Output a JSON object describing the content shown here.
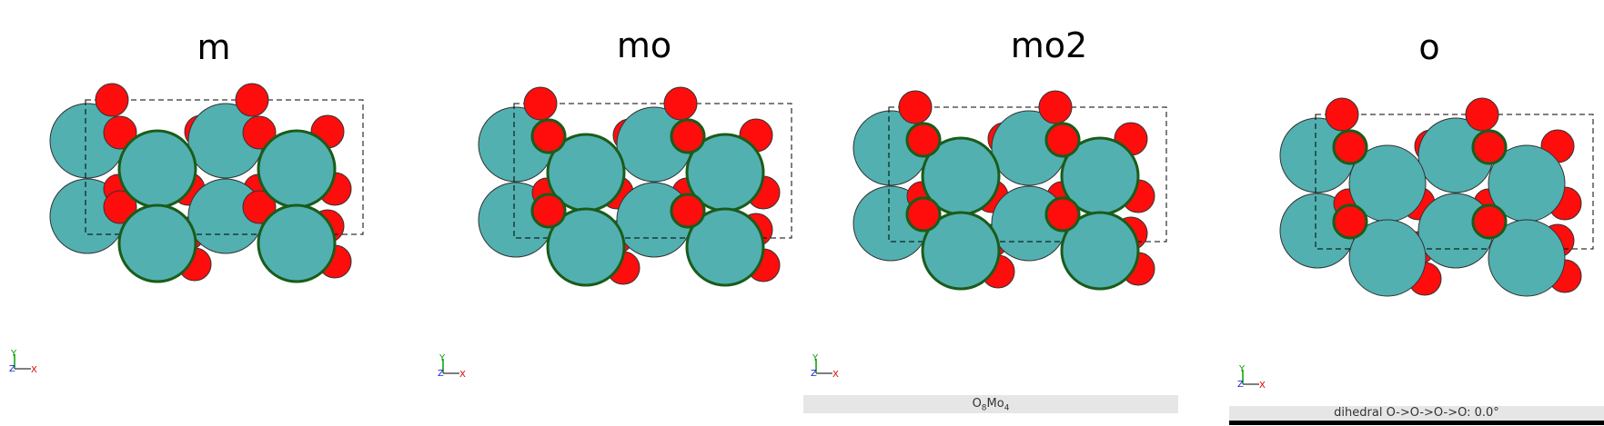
{
  "panels": [
    {
      "title": "m"
    },
    {
      "title": "mo"
    },
    {
      "title": "mo2"
    },
    {
      "title": "o"
    }
  ],
  "axis": {
    "y_label": "Y",
    "x_label": "X",
    "z_label": "Z"
  },
  "status": {
    "formula_o": "O",
    "formula_o_sub": "8",
    "formula_mo": "Mo",
    "formula_mo_sub": "4",
    "dihedral": "dihedral O->O->O->O: 0.0°"
  },
  "colors": {
    "molybdenum": "#52b0b0",
    "oxygen": "#ff0d0d",
    "selected_outline": "#1a5c1a",
    "axis_x": "#e00000",
    "axis_y": "#00a000",
    "axis_z": "#2020e0"
  }
}
